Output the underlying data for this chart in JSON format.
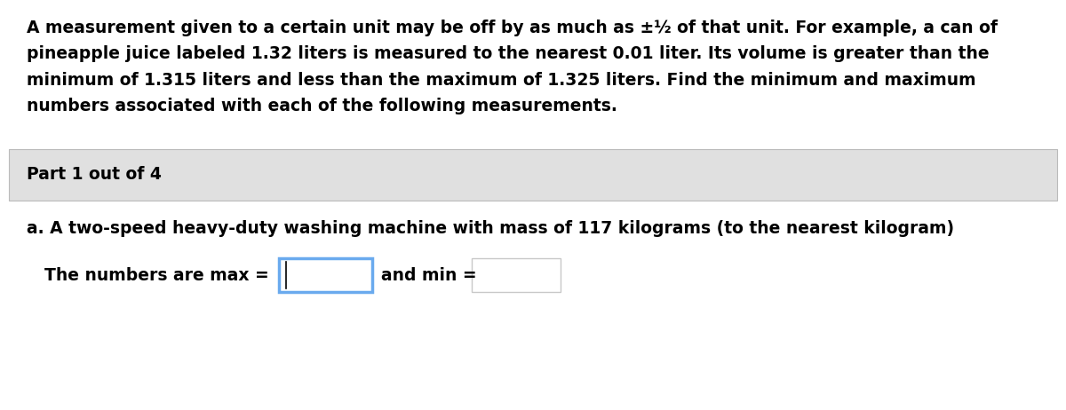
{
  "background_color": "#ffffff",
  "paragraph_line1": "A measurement given to a certain unit may be off by as much as ±½ of that unit. For example, a can of",
  "paragraph_line2": "pineapple juice labeled 1.32 liters is measured to the nearest 0.01 liter. Its volume is greater than the",
  "paragraph_line3": "minimum of 1.315 liters and less than the maximum of 1.325 liters. Find the minimum and maximum",
  "paragraph_line4": "numbers associated with each of the following measurements.",
  "part_label": "Part 1 out of 4",
  "part_bg_color": "#e0e0e0",
  "part_border_color": "#bbbbbb",
  "question_text": "a. A two-speed heavy-duty washing machine with mass of 117 kilograms (to the nearest kilogram)",
  "answer_text": "The numbers are max =",
  "and_min_text": "and min =",
  "box_max_border": "#6aaaee",
  "box_min_border": "#c8c8c8",
  "font_size": 13.5
}
